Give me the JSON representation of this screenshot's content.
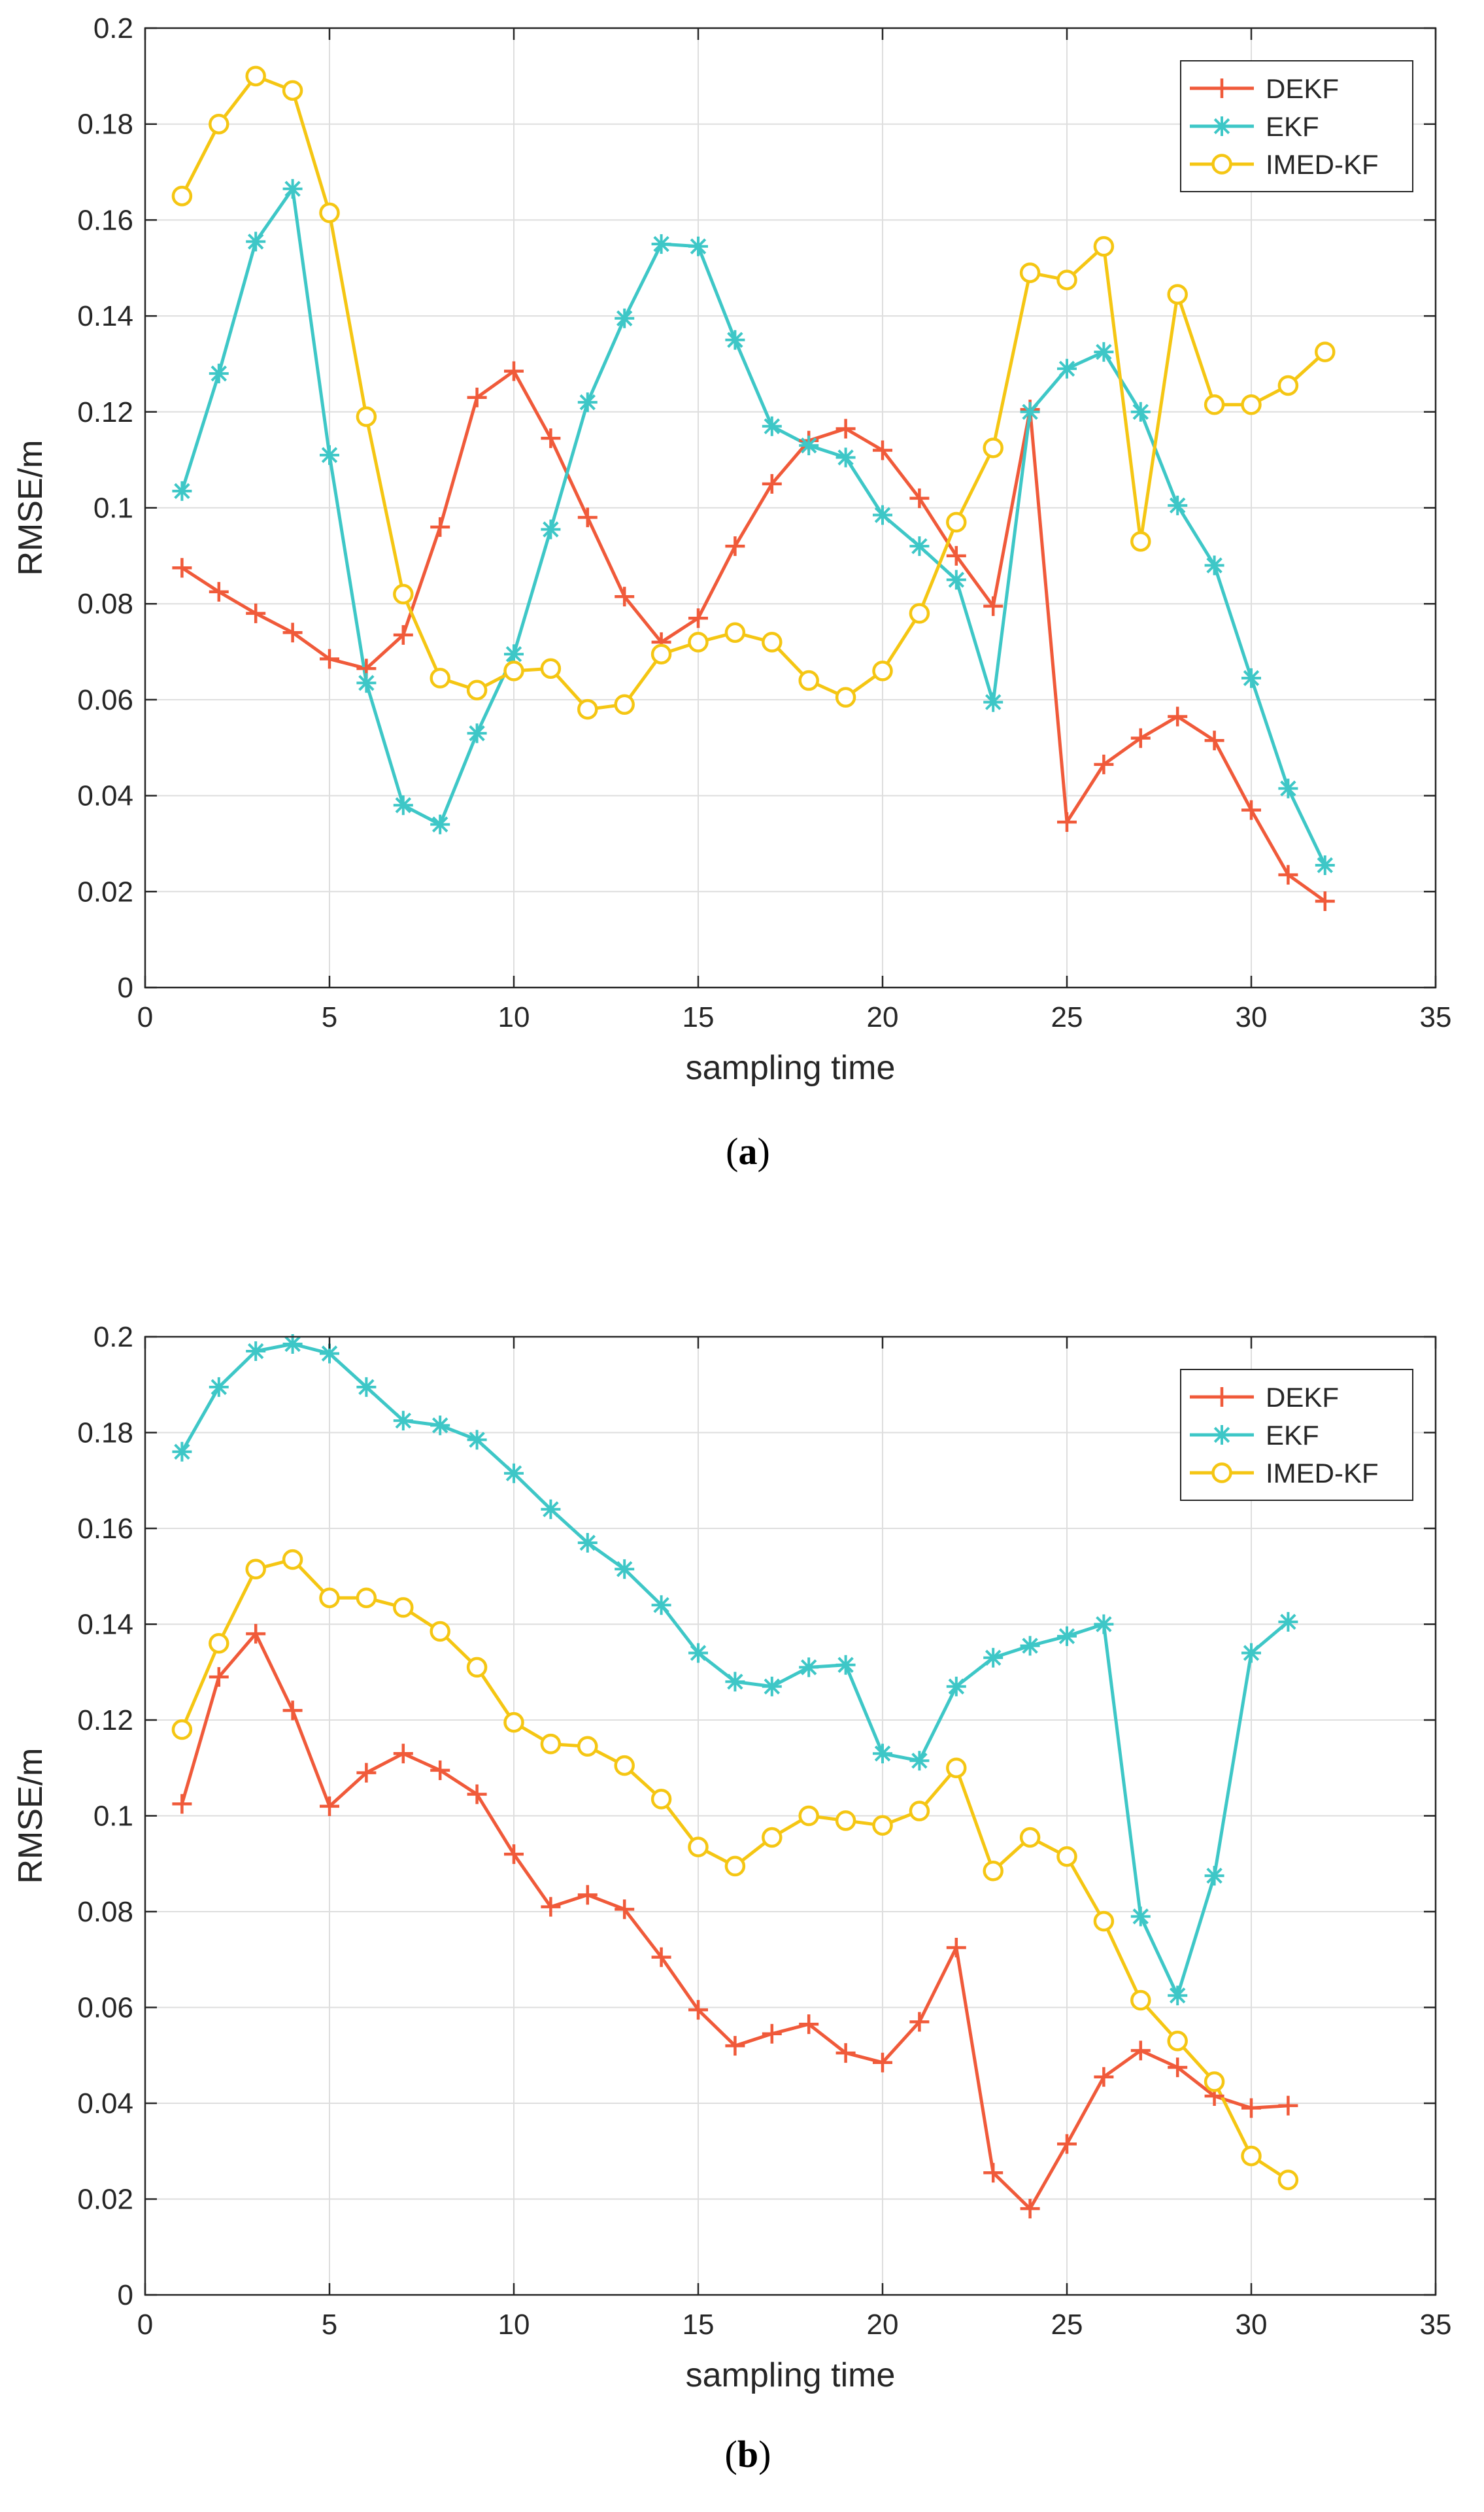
{
  "chart_data": [
    {
      "type": "line",
      "caption_open": "(",
      "caption_letter": "a",
      "caption_close": ")",
      "title": "",
      "xlabel": "sampling time",
      "ylabel": "RMSE/m",
      "xlim": [
        0,
        35
      ],
      "ylim": [
        0,
        0.2
      ],
      "xticks": [
        0,
        5,
        10,
        15,
        20,
        25,
        30,
        35
      ],
      "xtick_labels": [
        "0",
        "5",
        "10",
        "15",
        "20",
        "25",
        "30",
        "35"
      ],
      "yticks": [
        0,
        0.02,
        0.04,
        0.06,
        0.08,
        0.1,
        0.12,
        0.14,
        0.16,
        0.18,
        0.2
      ],
      "ytick_labels": [
        "0",
        "0.02",
        "0.04",
        "0.06",
        "0.08",
        "0.1",
        "0.12",
        "0.14",
        "0.16",
        "0.18",
        "0.2"
      ],
      "grid": true,
      "legend_position": "top-right",
      "series": [
        {
          "name": "DEKF",
          "color": "#f05a3a",
          "marker": "plus",
          "x": [
            1,
            2,
            3,
            4,
            5,
            6,
            7,
            8,
            9,
            10,
            11,
            12,
            13,
            14,
            15,
            16,
            17,
            18,
            19,
            20,
            21,
            22,
            23,
            24,
            25,
            26,
            27,
            28,
            29,
            30,
            31,
            32
          ],
          "values": [
            0.0875,
            0.0825,
            0.078,
            0.074,
            0.0685,
            0.0665,
            0.0735,
            0.096,
            0.123,
            0.1285,
            0.1145,
            0.098,
            0.0815,
            0.072,
            0.077,
            0.092,
            0.105,
            0.114,
            0.1165,
            0.112,
            0.102,
            0.09,
            0.0795,
            0.1205,
            0.0345,
            0.0465,
            0.052,
            0.0565,
            0.0515,
            0.037,
            0.0235,
            0.018
          ]
        },
        {
          "name": "EKF",
          "color": "#3ec7c7",
          "marker": "asterisk",
          "x": [
            1,
            2,
            3,
            4,
            5,
            6,
            7,
            8,
            9,
            10,
            11,
            12,
            13,
            14,
            15,
            16,
            17,
            18,
            19,
            20,
            21,
            22,
            23,
            24,
            25,
            26,
            27,
            28,
            29,
            30,
            31,
            32
          ],
          "values": [
            0.1035,
            0.128,
            0.1555,
            0.1665,
            0.111,
            0.0635,
            0.038,
            0.034,
            0.053,
            0.0695,
            0.0955,
            0.122,
            0.1395,
            0.155,
            0.1545,
            0.135,
            0.117,
            0.113,
            0.1105,
            0.0985,
            0.092,
            0.085,
            0.0595,
            0.12,
            0.129,
            0.1325,
            0.12,
            0.1005,
            0.088,
            0.0645,
            0.0415,
            0.0255
          ]
        },
        {
          "name": "IMED-KF",
          "color": "#f5c613",
          "marker": "circle",
          "x": [
            1,
            2,
            3,
            4,
            5,
            6,
            7,
            8,
            9,
            10,
            11,
            12,
            13,
            14,
            15,
            16,
            17,
            18,
            19,
            20,
            21,
            22,
            23,
            24,
            25,
            26,
            27,
            28,
            29,
            30,
            31,
            32
          ],
          "values": [
            0.165,
            0.18,
            0.19,
            0.187,
            0.1615,
            0.119,
            0.082,
            0.0645,
            0.062,
            0.066,
            0.0665,
            0.058,
            0.059,
            0.0695,
            0.072,
            0.074,
            0.072,
            0.064,
            0.0605,
            0.066,
            0.078,
            0.097,
            0.1125,
            0.149,
            0.1475,
            0.1545,
            0.093,
            0.1445,
            0.1215,
            0.1215,
            0.1255,
            0.1325
          ]
        }
      ]
    },
    {
      "type": "line",
      "caption_open": "(",
      "caption_letter": "b",
      "caption_close": ")",
      "title": "",
      "xlabel": "sampling time",
      "ylabel": "RMSE/m",
      "xlim": [
        0,
        35
      ],
      "ylim": [
        0,
        0.2
      ],
      "xticks": [
        0,
        5,
        10,
        15,
        20,
        25,
        30,
        35
      ],
      "xtick_labels": [
        "0",
        "5",
        "10",
        "15",
        "20",
        "25",
        "30",
        "35"
      ],
      "yticks": [
        0,
        0.02,
        0.04,
        0.06,
        0.08,
        0.1,
        0.12,
        0.14,
        0.16,
        0.18,
        0.2
      ],
      "ytick_labels": [
        "0",
        "0.02",
        "0.04",
        "0.06",
        "0.08",
        "0.1",
        "0.12",
        "0.14",
        "0.16",
        "0.18",
        "0.2"
      ],
      "grid": true,
      "legend_position": "top-right",
      "series": [
        {
          "name": "DEKF",
          "color": "#f05a3a",
          "marker": "plus",
          "x": [
            1,
            2,
            3,
            4,
            5,
            6,
            7,
            8,
            9,
            10,
            11,
            12,
            13,
            14,
            15,
            16,
            17,
            18,
            19,
            20,
            21,
            22,
            23,
            24,
            25,
            26,
            27,
            28,
            29,
            30,
            31
          ],
          "values": [
            0.1025,
            0.129,
            0.138,
            0.122,
            0.102,
            0.109,
            0.113,
            0.1095,
            0.1045,
            0.092,
            0.081,
            0.0835,
            0.0805,
            0.0705,
            0.0595,
            0.052,
            0.0545,
            0.0565,
            0.0505,
            0.0485,
            0.057,
            0.0725,
            0.0255,
            0.018,
            0.0315,
            0.0455,
            0.051,
            0.0475,
            0.0415,
            0.039,
            0.0395
          ]
        },
        {
          "name": "EKF",
          "color": "#3ec7c7",
          "marker": "asterisk",
          "x": [
            1,
            2,
            3,
            4,
            5,
            6,
            7,
            8,
            9,
            10,
            11,
            12,
            13,
            14,
            15,
            16,
            17,
            18,
            19,
            20,
            21,
            22,
            23,
            24,
            25,
            26,
            27,
            28,
            29,
            30,
            31
          ],
          "values": [
            0.176,
            0.1895,
            0.197,
            0.1985,
            0.1965,
            0.1895,
            0.1825,
            0.1815,
            0.1785,
            0.1715,
            0.164,
            0.157,
            0.1515,
            0.144,
            0.134,
            0.128,
            0.127,
            0.131,
            0.1315,
            0.113,
            0.1115,
            0.127,
            0.133,
            0.1355,
            0.1375,
            0.14,
            0.079,
            0.0625,
            0.0875,
            0.134,
            0.1405
          ]
        },
        {
          "name": "IMED-KF",
          "color": "#f5c613",
          "marker": "circle",
          "x": [
            1,
            2,
            3,
            4,
            5,
            6,
            7,
            8,
            9,
            10,
            11,
            12,
            13,
            14,
            15,
            16,
            17,
            18,
            19,
            20,
            21,
            22,
            23,
            24,
            25,
            26,
            27,
            28,
            29,
            30,
            31
          ],
          "values": [
            0.118,
            0.136,
            0.1515,
            0.1535,
            0.1455,
            0.1455,
            0.1435,
            0.1385,
            0.131,
            0.1195,
            0.115,
            0.1145,
            0.1105,
            0.1035,
            0.0935,
            0.0895,
            0.0955,
            0.1,
            0.099,
            0.098,
            0.101,
            0.11,
            0.0885,
            0.0955,
            0.0915,
            0.078,
            0.0615,
            0.053,
            0.0445,
            0.029,
            0.024
          ]
        }
      ]
    }
  ]
}
